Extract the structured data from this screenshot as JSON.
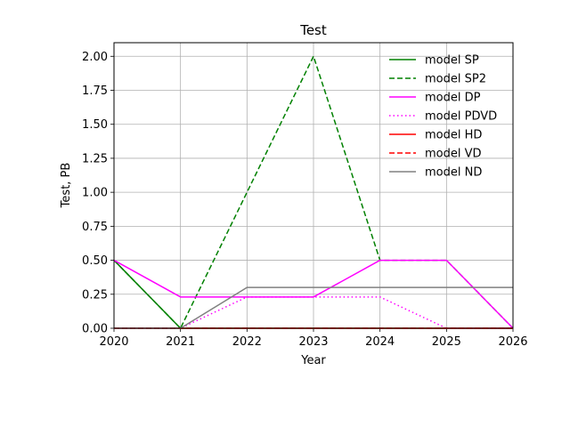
{
  "chart_data": {
    "type": "line",
    "title": "Test",
    "xlabel": "Year",
    "ylabel": "Test, PB",
    "x": [
      2020,
      2021,
      2022,
      2023,
      2024,
      2025,
      2026
    ],
    "xlim": [
      2020,
      2026
    ],
    "ylim": [
      0,
      2.1
    ],
    "xticks": [
      "2020",
      "2021",
      "2022",
      "2023",
      "2024",
      "2025",
      "2026"
    ],
    "yticks": [
      "0.00",
      "0.25",
      "0.50",
      "0.75",
      "1.00",
      "1.25",
      "1.50",
      "1.75",
      "2.00"
    ],
    "grid": true,
    "legend_position": "upper-right",
    "series": [
      {
        "name": "model SP",
        "color": "#008000",
        "dash": "solid",
        "values": [
          0.5,
          0.0,
          0.0,
          0.0,
          0.0,
          0.0,
          0.0
        ]
      },
      {
        "name": "model SP2",
        "color": "#008000",
        "dash": "dashed",
        "values": [
          0.5,
          0.0,
          1.0,
          2.0,
          0.5,
          0.5,
          0.0
        ]
      },
      {
        "name": "model DP",
        "color": "#ff00ff",
        "dash": "solid",
        "values": [
          0.5,
          0.23,
          0.23,
          0.23,
          0.5,
          0.5,
          0.0
        ]
      },
      {
        "name": "model PDVD",
        "color": "#ff00ff",
        "dash": "dotted",
        "values": [
          0.0,
          0.0,
          0.23,
          0.23,
          0.23,
          0.0,
          0.0
        ]
      },
      {
        "name": "model HD",
        "color": "#ff0000",
        "dash": "solid",
        "values": [
          0.0,
          0.0,
          0.0,
          0.0,
          0.0,
          0.0,
          0.0
        ]
      },
      {
        "name": "model VD",
        "color": "#ff0000",
        "dash": "dashed",
        "values": [
          0.0,
          0.0,
          0.0,
          0.0,
          0.0,
          0.0,
          0.0
        ]
      },
      {
        "name": "model ND",
        "color": "#808080",
        "dash": "solid",
        "values": [
          0.0,
          0.0,
          0.3,
          0.3,
          0.3,
          0.3,
          0.3
        ]
      }
    ]
  }
}
